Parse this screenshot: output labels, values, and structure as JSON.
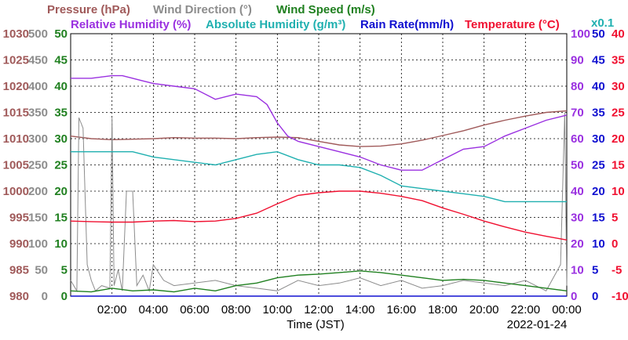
{
  "chart_data": {
    "type": "line",
    "date": "2022-01-24",
    "xlabel": "Time (JST)",
    "x_ticks": [
      "02:00",
      "04:00",
      "06:00",
      "08:00",
      "10:00",
      "12:00",
      "14:00",
      "16:00",
      "18:00",
      "20:00",
      "22:00",
      "00:00"
    ],
    "xlim": [
      "00:00",
      "24:00"
    ],
    "grid": true,
    "legend": [
      {
        "label": "Pressure (hPa)",
        "color": "#a05a5a"
      },
      {
        "label": "Wind Direction (°)",
        "color": "#8c8c8c"
      },
      {
        "label": "Wind Speed (m/s)",
        "color": "#208020"
      },
      {
        "label": "Relative Humidity (%)",
        "color": "#9a30e0"
      },
      {
        "label": "Absolute Humidity (g/m³)",
        "color": "#20b0b0"
      },
      {
        "label": "Rain Rate(mm/h)",
        "color": "#1010d0"
      },
      {
        "label": "Temperature (°C)",
        "color": "#f01030"
      },
      {
        "label": "x0.1",
        "color": "#20b0b0"
      }
    ],
    "axes": {
      "pressure": {
        "ticks": [
          "1030",
          "1025",
          "1020",
          "1015",
          "1010",
          "1005",
          "1000",
          "995",
          "990",
          "985",
          "980"
        ],
        "ylim": [
          980,
          1030
        ],
        "color": "#a05a5a"
      },
      "wind_direction": {
        "ticks": [
          "500",
          "450",
          "400",
          "350",
          "300",
          "250",
          "200",
          "150",
          "100",
          "50",
          "0"
        ],
        "ylim": [
          0,
          500
        ],
        "color": "#8c8c8c"
      },
      "wind_speed": {
        "ticks": [
          "50",
          "45",
          "40",
          "35",
          "30",
          "25",
          "20",
          "15",
          "10",
          "5",
          "0"
        ],
        "ylim": [
          0,
          50
        ],
        "color": "#208020"
      },
      "relative_humidity": {
        "ticks": [
          "100",
          "90",
          "80",
          "70",
          "60",
          "50",
          "40",
          "30",
          "20",
          "10",
          "0"
        ],
        "ylim": [
          0,
          100
        ],
        "color": "#9a30e0"
      },
      "rain_rate": {
        "ticks": [
          "50",
          "45",
          "40",
          "35",
          "30",
          "25",
          "20",
          "15",
          "10",
          "5",
          "0"
        ],
        "ylim": [
          0,
          50
        ],
        "color": "#1010d0"
      },
      "temperature": {
        "ticks": [
          "40",
          "35",
          "30",
          "25",
          "20",
          "15",
          "10",
          "5",
          "0",
          "-5",
          "-10"
        ],
        "ylim": [
          -10,
          40
        ],
        "color": "#f01030"
      }
    },
    "series": [
      {
        "name": "Pressure (hPa)",
        "axis": "pressure",
        "color": "#a05a5a",
        "x": [
          0,
          1,
          2,
          3,
          4,
          5,
          6,
          7,
          8,
          9,
          10,
          11,
          12,
          13,
          14,
          15,
          16,
          17,
          18,
          19,
          20,
          21,
          22,
          23,
          24
        ],
        "y": [
          1010.5,
          1010.0,
          1009.8,
          1009.9,
          1010.0,
          1010.2,
          1010.1,
          1010.1,
          1010.0,
          1010.2,
          1010.3,
          1010.2,
          1009.5,
          1008.8,
          1008.5,
          1008.6,
          1009.0,
          1009.7,
          1010.6,
          1011.5,
          1012.6,
          1013.5,
          1014.3,
          1015.0,
          1015.3
        ]
      },
      {
        "name": "Wind Direction (°)",
        "axis": "wind_direction",
        "color": "#8c8c8c",
        "x": [
          0,
          0.3,
          0.4,
          0.6,
          0.8,
          1.0,
          1.2,
          1.5,
          1.9,
          2.0,
          2.1,
          2.3,
          2.5,
          2.7,
          2.8,
          3.0,
          3.2,
          3.5,
          3.8,
          4.0,
          4.5,
          5.0,
          6.0,
          7.0,
          8.0,
          9.0,
          10.0,
          11.0,
          12.0,
          13.0,
          14.0,
          15.0,
          16.0,
          17.0,
          18.0,
          19.0,
          20.0,
          21.0,
          22.0,
          23.0,
          23.7,
          23.9,
          24.0
        ],
        "y": [
          30,
          10,
          340,
          320,
          60,
          30,
          10,
          20,
          15,
          340,
          20,
          50,
          10,
          200,
          200,
          200,
          20,
          40,
          10,
          60,
          30,
          20,
          25,
          30,
          20,
          15,
          10,
          30,
          20,
          25,
          35,
          20,
          30,
          15,
          20,
          30,
          25,
          20,
          30,
          10,
          60,
          350,
          20
        ]
      },
      {
        "name": "Wind Speed (m/s)",
        "axis": "wind_speed",
        "color": "#208020",
        "x": [
          0,
          1,
          2,
          3,
          4,
          5,
          6,
          7,
          8,
          9,
          10,
          11,
          12,
          13,
          14,
          15,
          16,
          17,
          18,
          19,
          20,
          21,
          22,
          23,
          24
        ],
        "y": [
          1.0,
          0.8,
          1.5,
          1.0,
          1.2,
          0.8,
          1.5,
          1.0,
          2.0,
          2.5,
          3.5,
          4.0,
          4.2,
          4.5,
          4.8,
          4.5,
          4.0,
          3.5,
          3.0,
          3.2,
          3.0,
          2.5,
          2.0,
          1.5,
          1.0
        ]
      },
      {
        "name": "Relative Humidity (%)",
        "axis": "relative_humidity",
        "color": "#9a30e0",
        "x": [
          0,
          1,
          2,
          2.5,
          3,
          3.5,
          4,
          5,
          6,
          7,
          8,
          9,
          9.5,
          10,
          10.5,
          11,
          12,
          13,
          14,
          15,
          16,
          17,
          18,
          19,
          20,
          21,
          22,
          23,
          24
        ],
        "y": [
          83,
          83,
          84,
          84,
          83,
          82,
          81,
          80,
          79,
          75,
          77,
          76,
          73,
          66,
          61,
          59,
          57,
          55,
          53,
          50,
          48,
          48,
          52,
          56,
          57,
          61,
          64,
          67,
          69
        ]
      },
      {
        "name": "Absolute Humidity (g/m³)",
        "axis": "relative_humidity",
        "color": "#20b0b0",
        "x": [
          0,
          1,
          2,
          3,
          4,
          5,
          6,
          7,
          8,
          9,
          10,
          11,
          12,
          13,
          14,
          15,
          16,
          17,
          18,
          19,
          20,
          21,
          22,
          23,
          24
        ],
        "y": [
          55,
          55,
          55,
          55,
          53,
          52,
          51,
          50,
          52,
          54,
          55,
          52,
          50,
          50,
          49,
          46,
          42,
          41,
          40,
          39,
          38,
          36,
          36,
          36,
          36
        ]
      },
      {
        "name": "Rain Rate(mm/h)",
        "axis": "rain_rate",
        "color": "#1010d0",
        "x": [
          0,
          24
        ],
        "y": [
          0,
          0
        ]
      },
      {
        "name": "Temperature (°C)",
        "axis": "temperature",
        "color": "#f01030",
        "x": [
          0,
          1,
          2,
          3,
          4,
          5,
          6,
          7,
          8,
          9,
          10,
          11,
          12,
          13,
          14,
          15,
          16,
          17,
          18,
          19,
          20,
          21,
          22,
          23,
          24
        ],
        "y": [
          4.3,
          4.2,
          4.1,
          4.1,
          4.3,
          4.4,
          4.2,
          4.3,
          4.8,
          5.8,
          7.6,
          9.2,
          9.7,
          10.0,
          10.0,
          9.6,
          9.0,
          8.2,
          6.8,
          5.6,
          4.3,
          3.2,
          2.2,
          1.4,
          0.7
        ]
      }
    ]
  }
}
